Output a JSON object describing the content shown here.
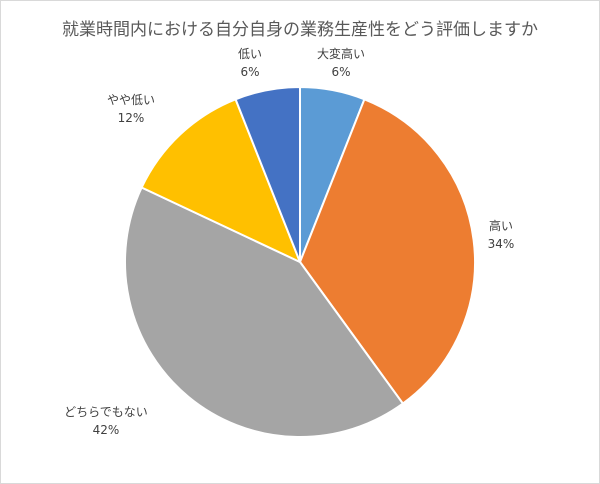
{
  "chart_data": {
    "type": "pie",
    "title": "就業時間内における自分自身の業務生産性をどう評価しますか",
    "start_angle": "12 o'clock, clockwise",
    "slices": [
      {
        "label": "大変高い",
        "value": 6,
        "value_label": "6%",
        "color": "#5B9BD5"
      },
      {
        "label": "高い",
        "value": 34,
        "value_label": "34%",
        "color": "#ED7D31"
      },
      {
        "label": "どちらでもない",
        "value": 42,
        "value_label": "42%",
        "color": "#A5A5A5"
      },
      {
        "label": "やや低い",
        "value": 12,
        "value_label": "12%",
        "color": "#FFC000"
      },
      {
        "label": "低い",
        "value": 6,
        "value_label": "6%",
        "color": "#4472C4"
      }
    ],
    "legend": "none"
  }
}
